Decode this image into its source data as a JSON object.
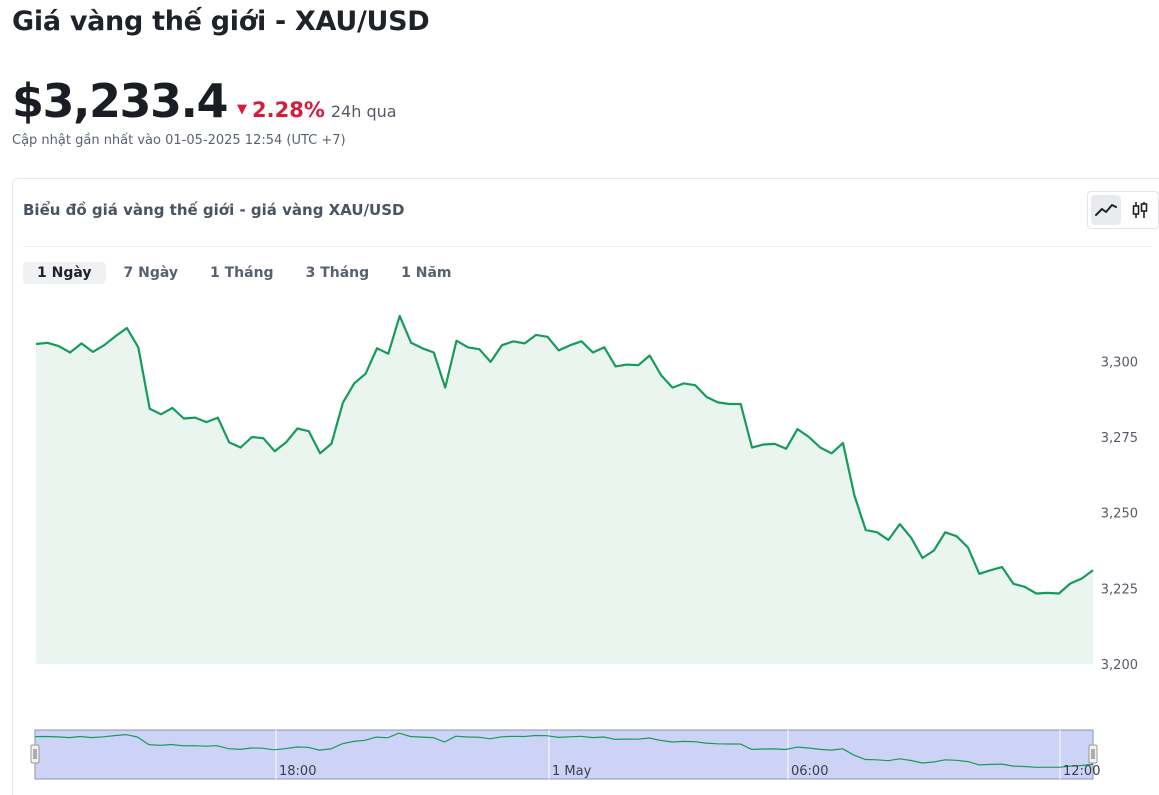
{
  "header": {
    "title": "Giá vàng thế giới - XAU/USD",
    "price": "$3,233.4",
    "change_pct": "2.28%",
    "change_period": "24h qua",
    "updated": "Cập nhật gần nhất vào 01-05-2025 12:54 (UTC +7)"
  },
  "card": {
    "title": "Biểu đồ giá vàng thế giới - giá vàng XAU/USD",
    "view_modes": [
      {
        "name": "line-chart-icon",
        "active": true
      },
      {
        "name": "candlestick-icon",
        "active": false
      }
    ],
    "tabs": [
      {
        "label": "1 Ngày",
        "active": true
      },
      {
        "label": "7 Ngày",
        "active": false
      },
      {
        "label": "1 Tháng",
        "active": false
      },
      {
        "label": "3 Tháng",
        "active": false
      },
      {
        "label": "1 Năm",
        "active": false
      }
    ]
  },
  "colors": {
    "line": "#169b5a",
    "area": "#eaf5ef",
    "down": "#d81b3c",
    "navigator_fill": "#cdd3f7",
    "navigator_border": "#8a93b8"
  },
  "chart_data": {
    "type": "area",
    "ylim": [
      3200,
      3310
    ],
    "yticks": [
      3200,
      3225,
      3250,
      3275,
      3300
    ],
    "ytick_labels": [
      "3,200",
      "3,225",
      "3,250",
      "3,275",
      "3,300"
    ],
    "xtick_labels": [
      "18:00",
      "1 May",
      "06:00",
      "12:00"
    ],
    "series": [
      {
        "values": [
          3305.7,
          3306.1,
          3305.0,
          3302.9,
          3305.9,
          3303.1,
          3305.3,
          3308.3,
          3311.0,
          3304.6,
          3284.3,
          3282.5,
          3284.6,
          3281.1,
          3281.4,
          3279.9,
          3281.4,
          3273.2,
          3271.5,
          3275.0,
          3274.6,
          3270.3,
          3273.2,
          3277.8,
          3276.9,
          3269.6,
          3272.8,
          3286.3,
          3292.7,
          3295.9,
          3304.3,
          3302.5,
          3315.0,
          3306.1,
          3304.3,
          3302.9,
          3291.3,
          3306.8,
          3304.6,
          3304.0,
          3299.8,
          3305.3,
          3306.6,
          3305.9,
          3308.7,
          3308.1,
          3303.6,
          3305.3,
          3306.6,
          3302.9,
          3304.6,
          3298.3,
          3298.9,
          3298.7,
          3301.9,
          3295.4,
          3291.3,
          3292.7,
          3292.1,
          3288.2,
          3286.4,
          3285.9,
          3285.9,
          3271.5,
          3272.5,
          3272.7,
          3271.1,
          3277.6,
          3275.0,
          3271.5,
          3269.6,
          3273.0,
          3255.8,
          3244.3,
          3243.5,
          3241.0,
          3246.2,
          3241.7,
          3235.0,
          3237.5,
          3243.5,
          3242.2,
          3238.5,
          3229.8,
          3231.0,
          3232.0,
          3226.5,
          3225.5,
          3223.3,
          3223.5,
          3223.3,
          3226.6,
          3228.2,
          3231.0
        ]
      }
    ]
  }
}
